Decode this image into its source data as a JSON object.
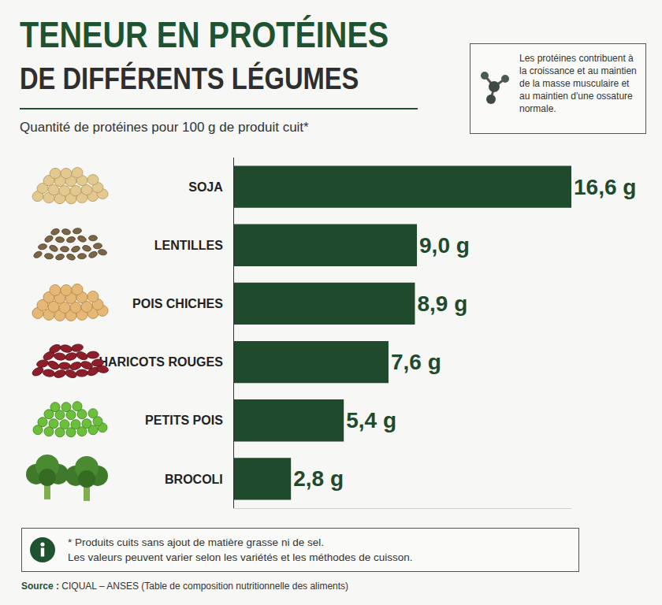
{
  "chart_data": {
    "type": "bar",
    "orientation": "horizontal",
    "title": "TENEUR EN PROTÉINES",
    "subtitle": "DE DIFFÉRENTS LÉGUMES",
    "description": "Quantité de protéines pour 100 g de produit cuit*",
    "info_box": "Les protéines contribuent à la croissance et au maintien de la masse musculaire et au maintien d'une ossature normale.",
    "footnote": [
      "* Produits cuits sans ajout de matière grasse ni de sel.",
      "Les valeurs peuvent varier selon les variétés et les méthodes de cuisson."
    ],
    "source_label": "Source :",
    "source": "CIQUAL – ANSES (Table de composition nutritionnelle des aliments)",
    "categories": [
      "SOJA",
      "LENTILLES",
      "POIS CHICHES",
      "HARICOTS ROUGES",
      "PETITS POIS",
      "BROCOLI"
    ],
    "values": [
      16.6,
      9.0,
      8.9,
      7.6,
      5.4,
      2.8
    ],
    "value_labels": [
      "16,6 g",
      "9,0 g",
      "8,9 g",
      "7,6 g",
      "5,4 g",
      "2,8 g"
    ],
    "color": "#1f4a2c",
    "xlim": [
      0,
      16.6
    ],
    "data_labels": true,
    "tick_labels": "y",
    "grid": false
  }
}
